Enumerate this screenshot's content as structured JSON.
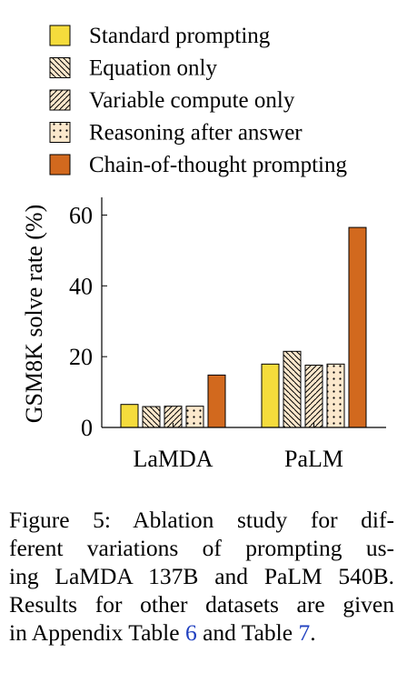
{
  "chart_data": {
    "type": "bar",
    "categories": [
      "LaMDA",
      "PaLM"
    ],
    "series": [
      {
        "name": "Standard prompting",
        "values": [
          6.5,
          17.9
        ],
        "color": "#f5dc3c",
        "pattern": "none"
      },
      {
        "name": "Equation only",
        "values": [
          5.9,
          21.5
        ],
        "color": "#fbe8cc",
        "pattern": "back-hatch"
      },
      {
        "name": "Variable compute only",
        "values": [
          6.0,
          17.6
        ],
        "color": "#fbe8cc",
        "pattern": "forward-hatch"
      },
      {
        "name": "Reasoning after answer",
        "values": [
          6.0,
          17.9
        ],
        "color": "#fbe8cc",
        "pattern": "dots"
      },
      {
        "name": "Chain-of-thought prompting",
        "values": [
          14.8,
          56.5
        ],
        "color": "#d2691e",
        "pattern": "none"
      }
    ],
    "xlabel": "",
    "ylabel": "GSM8K solve rate (%)",
    "ylim": [
      0,
      65
    ],
    "yticks": [
      0,
      20,
      40,
      60
    ],
    "legend_position": "top",
    "grid": false
  },
  "caption": {
    "lines": [
      "Figure 5:   Ablation study for dif-",
      "ferent variations of prompting us-",
      "ing LaMDA 137B and PaLM 540B.",
      "Results for other datasets are given"
    ],
    "last_prefix": "in Appendix Table ",
    "ref1": "6",
    "last_middle": " and Table ",
    "ref2": "7",
    "last_suffix": "."
  }
}
